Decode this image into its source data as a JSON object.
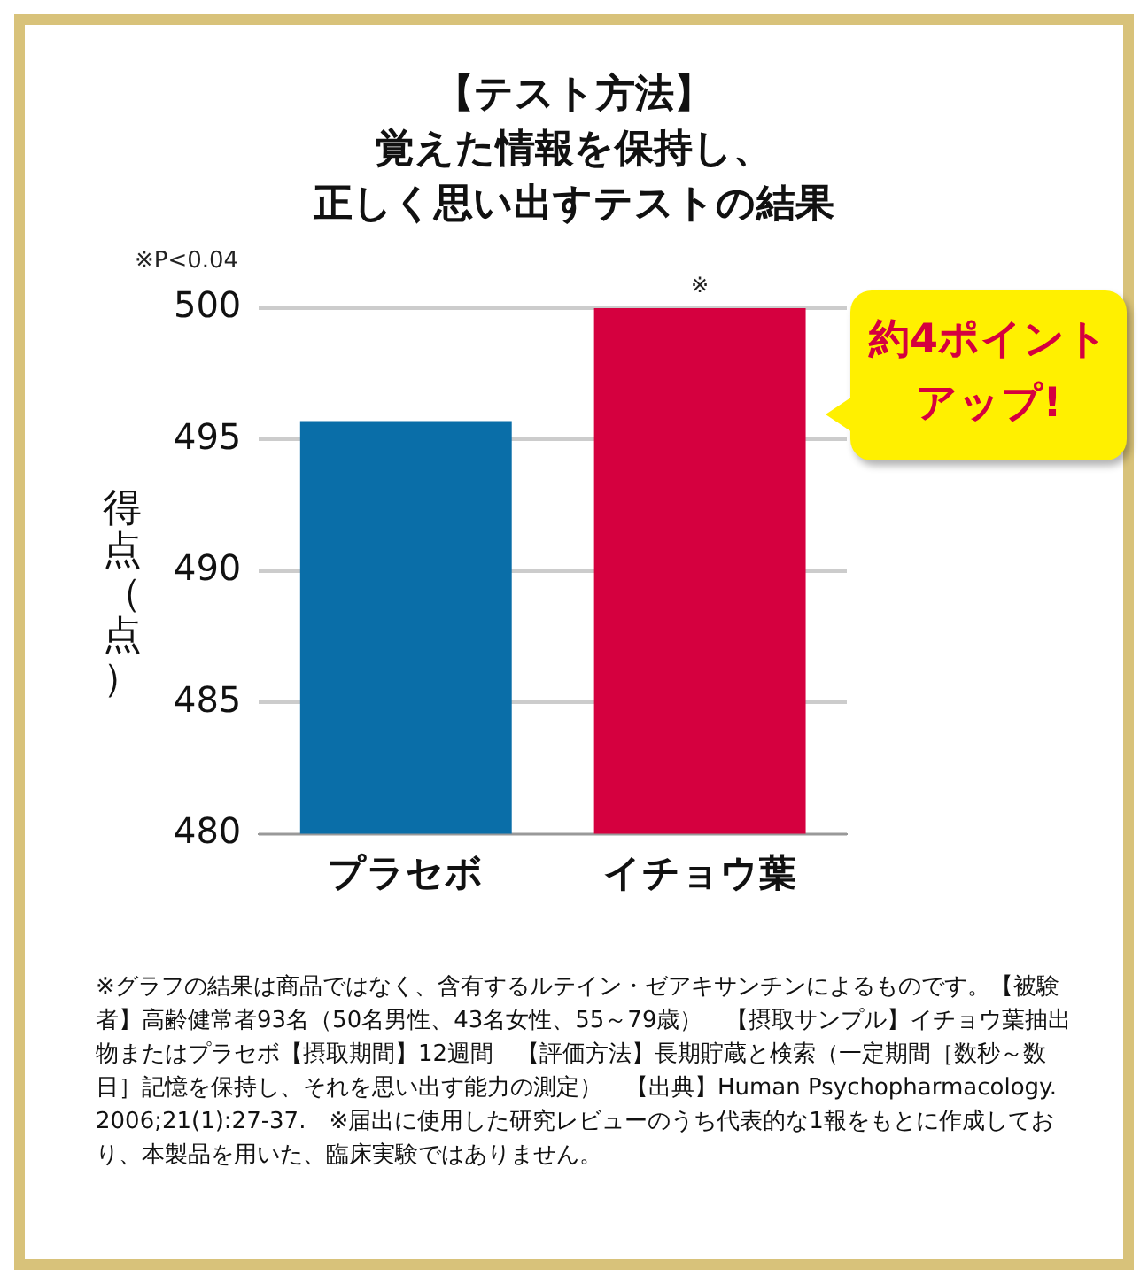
{
  "chart_data": {
    "type": "bar",
    "title": "【テスト方法】覚えた情報を保持し、正しく思い出すテストの結果",
    "ylabel": "得点（点）",
    "categories": [
      "プラセボ",
      "イチョウ葉"
    ],
    "values": [
      495.7,
      500
    ],
    "colors": [
      "#0a6ea8",
      "#d5003f"
    ],
    "ylim": [
      480,
      500
    ],
    "yticks": [
      480,
      485,
      490,
      495,
      500
    ],
    "grid": "y",
    "annotations": [
      "※P<0.04",
      {
        "text": "※",
        "x": "イチョウ葉",
        "y": 500
      },
      "約4ポイントアップ!",
      "※グラフの結果は商品ではなく、含有するルテイン・ゼアキサンチンによるものです。【被験者】高齢健常者93名（50名男性、43名女性、55～79歳）　【摂取サンプル】イチョウ葉抽出物またはプラセボ【摂取期間】12週間　【評価方法】長期貯蔵と検索（一定期間［数秒～数日］記憶を保持し、それを思い出す能力の測定）　【出典】Human Psychopharmacology. 2006;21(1):27-37.　※届出に使用した研究レビューのうち代表的な1報をもとに作成しており、本製品を用いた、臨床実験ではありません。"
    ]
  }
}
